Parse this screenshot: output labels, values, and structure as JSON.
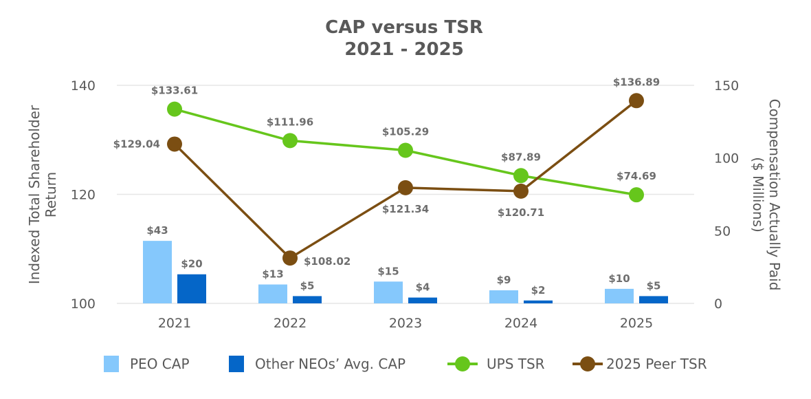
{
  "chart_data": {
    "type": "bar+line",
    "title": [
      "CAP versus TSR",
      "2021 - 2025"
    ],
    "categories": [
      "2021",
      "2022",
      "2023",
      "2024",
      "2025"
    ],
    "left_axis": {
      "label": [
        "Indexed Total Shareholder",
        "Return"
      ],
      "range": [
        100,
        140
      ],
      "ticks": [
        100,
        120,
        140
      ]
    },
    "right_axis": {
      "label": [
        "Compensation Actually Paid",
        "($ Millions)"
      ],
      "range": [
        0,
        150
      ],
      "ticks": [
        0,
        50,
        100,
        150
      ]
    },
    "grid": "horizontal",
    "legend_position": "bottom",
    "bar_series": [
      {
        "name": "PEO CAP",
        "axis": "right",
        "color": "#85c8fc",
        "values": [
          43,
          13,
          15,
          9,
          10
        ],
        "labels": [
          "$43",
          "$13",
          "$15",
          "$9",
          "$10"
        ]
      },
      {
        "name": "Other NEOs’ Avg. CAP",
        "axis": "right",
        "color": "#0566c8",
        "values": [
          20,
          5,
          4,
          2,
          5
        ],
        "labels": [
          "$20",
          "$5",
          "$4",
          "$2",
          "$5"
        ]
      }
    ],
    "line_series": [
      {
        "name": "UPS TSR",
        "axis": "right",
        "color": "#66c61c",
        "values": [
          133.61,
          111.96,
          105.29,
          87.89,
          74.69
        ],
        "labels": [
          "$133.61",
          "$111.96",
          "$105.29",
          "$87.89",
          "$74.69"
        ],
        "label_side": [
          "above",
          "above",
          "above",
          "above",
          "above"
        ]
      },
      {
        "name": "2025 Peer TSR",
        "axis": "right",
        "color": "#7b4e12",
        "values": [
          109.56,
          31.2,
          79.56,
          77.2,
          139.45
        ],
        "labels": [
          "$129.04",
          "$108.02",
          "$121.34",
          "$120.71",
          "$136.89"
        ],
        "label_side": [
          "left",
          "right",
          "below",
          "below",
          "above"
        ]
      }
    ]
  }
}
